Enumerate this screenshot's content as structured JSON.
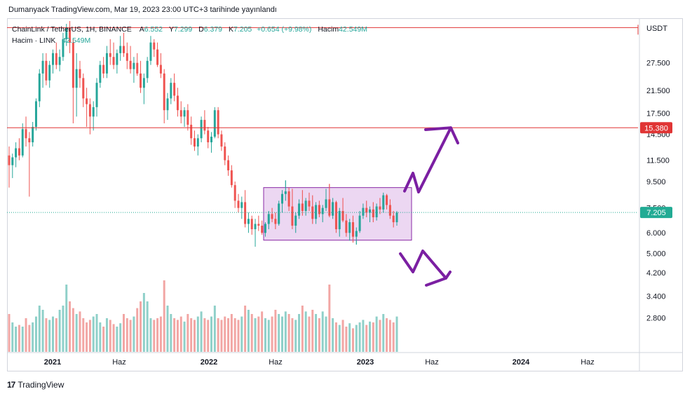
{
  "header": {
    "published": "Dumanyack TradingView.com, Mar 19, 2023 23:00 UTC+3 tarihinde yayınlandı"
  },
  "legend": {
    "symbol": "ChainLink / TetherUS, 1H, BINANCE",
    "o_label": "A",
    "o_val": "6.552",
    "h_label": "Y",
    "h_val": "7.299",
    "l_label": "D",
    "l_val": "6.379",
    "c_label": "K",
    "c_val": "7.205",
    "change": "+0.654 (+9.98%)",
    "vol_label": "Hacim",
    "vol_val": "42.549M",
    "line2_label": "Hacim · LINK",
    "line2_val": "42.549M"
  },
  "footer": {
    "brand": "TradingView",
    "logo": "17"
  },
  "colors": {
    "up": "#26a69a",
    "down": "#ef5350",
    "upVol": "#8fd0c9",
    "downVol": "#f2a6a4",
    "hline": "#e03535",
    "box_fill": "#e6c9ee",
    "box_stroke": "#8a2aa6",
    "arrow": "#7b1fa2",
    "lastPrice": "#22ab94"
  },
  "chart_data": {
    "type": "candlestick",
    "title": "ChainLink / TetherUS, 1H, BINANCE",
    "currency": "USDT",
    "scale": "log",
    "ylim": [
      2.3,
      40
    ],
    "price_ticks": [
      "27.500",
      "21.500",
      "17.500",
      "14.500",
      "11.500",
      "9.500",
      "7.500",
      "6.000",
      "5.000",
      "4.200",
      "3.400",
      "2.800"
    ],
    "x_ticks": [
      "2021",
      "Haz",
      "2022",
      "Haz",
      "2023",
      "Haz",
      "2024",
      "Haz"
    ],
    "horizontal_lines": [
      {
        "price": 15.38,
        "label": "15.380"
      },
      {
        "price": 37.7,
        "label": ""
      }
    ],
    "last_price": {
      "price": 7.205,
      "label": "7.205"
    },
    "consolidation_box": {
      "price_top": 9.0,
      "price_bottom": 5.62
    },
    "projection_up_target": 15.38,
    "projection_down_target": 4.0,
    "ohlc_weekly": [
      [
        12.0,
        13.0,
        9.0,
        11.0
      ],
      [
        11.0,
        12.2,
        9.8,
        11.8
      ],
      [
        11.8,
        13.5,
        10.8,
        12.8
      ],
      [
        12.8,
        14.0,
        11.5,
        12.0
      ],
      [
        12.0,
        16.0,
        11.8,
        15.2
      ],
      [
        15.2,
        17.0,
        13.0,
        14.0
      ],
      [
        14.0,
        14.8,
        8.3,
        13.5
      ],
      [
        13.5,
        16.2,
        13.0,
        15.5
      ],
      [
        15.5,
        20.0,
        15.0,
        19.5
      ],
      [
        19.5,
        26.0,
        18.5,
        25.0
      ],
      [
        25.0,
        30.0,
        22.0,
        28.0
      ],
      [
        28.0,
        30.0,
        22.5,
        23.5
      ],
      [
        23.5,
        28.0,
        22.0,
        27.0
      ],
      [
        27.0,
        31.0,
        25.0,
        30.0
      ],
      [
        30.0,
        33.0,
        26.0,
        27.0
      ],
      [
        27.0,
        31.0,
        25.5,
        29.0
      ],
      [
        29.0,
        36.0,
        28.0,
        34.0
      ],
      [
        34.0,
        39.0,
        32.0,
        37.5
      ],
      [
        37.5,
        44.0,
        30.0,
        33.0
      ],
      [
        33.0,
        34.0,
        16.0,
        22.0
      ],
      [
        22.0,
        30.0,
        17.0,
        26.0
      ],
      [
        26.0,
        28.0,
        22.0,
        24.0
      ],
      [
        24.0,
        25.0,
        18.5,
        20.0
      ],
      [
        20.0,
        22.0,
        15.5,
        19.0
      ],
      [
        19.0,
        20.0,
        14.5,
        17.0
      ],
      [
        17.0,
        19.5,
        15.0,
        18.5
      ],
      [
        18.5,
        24.0,
        17.0,
        23.0
      ],
      [
        23.0,
        28.0,
        22.0,
        27.0
      ],
      [
        27.0,
        29.0,
        24.0,
        25.0
      ],
      [
        25.0,
        32.0,
        24.0,
        30.0
      ],
      [
        30.0,
        34.0,
        27.0,
        29.0
      ],
      [
        29.0,
        33.0,
        26.0,
        27.0
      ],
      [
        27.0,
        31.0,
        25.0,
        30.0
      ],
      [
        30.0,
        35.0,
        28.0,
        32.0
      ],
      [
        32.0,
        36.0,
        29.0,
        30.0
      ],
      [
        30.0,
        33.0,
        26.0,
        28.0
      ],
      [
        28.0,
        32.0,
        25.0,
        26.0
      ],
      [
        26.0,
        29.0,
        23.0,
        27.5
      ],
      [
        27.5,
        30.0,
        24.5,
        25.0
      ],
      [
        25.0,
        28.0,
        21.0,
        22.0
      ],
      [
        22.0,
        25.0,
        19.0,
        24.0
      ],
      [
        24.0,
        29.0,
        23.0,
        28.0
      ],
      [
        28.0,
        35.0,
        27.0,
        33.0
      ],
      [
        33.0,
        34.0,
        29.0,
        31.0
      ],
      [
        31.0,
        33.0,
        26.5,
        27.0
      ],
      [
        27.0,
        30.0,
        24.0,
        25.0
      ],
      [
        25.0,
        26.0,
        16.0,
        18.0
      ],
      [
        18.0,
        21.0,
        16.5,
        20.0
      ],
      [
        20.0,
        24.0,
        19.0,
        23.0
      ],
      [
        23.0,
        25.0,
        19.5,
        20.5
      ],
      [
        20.5,
        22.0,
        17.0,
        18.0
      ],
      [
        18.0,
        19.5,
        16.0,
        17.0
      ],
      [
        17.0,
        18.5,
        15.5,
        18.0
      ],
      [
        18.0,
        19.0,
        15.0,
        15.8
      ],
      [
        15.8,
        17.0,
        13.2,
        14.0
      ],
      [
        14.0,
        15.0,
        12.5,
        13.0
      ],
      [
        13.0,
        14.5,
        12.0,
        14.0
      ],
      [
        14.0,
        17.0,
        13.5,
        16.5
      ],
      [
        16.5,
        18.0,
        14.5,
        15.0
      ],
      [
        15.0,
        15.5,
        12.8,
        13.5
      ],
      [
        13.5,
        14.8,
        12.3,
        14.2
      ],
      [
        14.2,
        18.5,
        14.0,
        18.0
      ],
      [
        18.0,
        18.5,
        14.0,
        14.5
      ],
      [
        14.5,
        15.0,
        12.5,
        13.0
      ],
      [
        13.0,
        13.5,
        11.0,
        11.5
      ],
      [
        11.5,
        12.0,
        10.0,
        10.5
      ],
      [
        10.5,
        11.0,
        9.0,
        9.2
      ],
      [
        9.2,
        9.5,
        7.5,
        8.0
      ],
      [
        8.0,
        8.5,
        7.2,
        7.5
      ],
      [
        7.5,
        8.3,
        6.8,
        7.9
      ],
      [
        7.9,
        8.8,
        6.3,
        6.5
      ],
      [
        6.5,
        7.2,
        6.0,
        6.8
      ],
      [
        6.8,
        7.0,
        5.9,
        6.2
      ],
      [
        6.2,
        6.8,
        5.3,
        6.5
      ],
      [
        6.5,
        7.0,
        6.1,
        6.4
      ],
      [
        6.4,
        6.7,
        5.9,
        6.0
      ],
      [
        6.0,
        6.6,
        5.8,
        6.5
      ],
      [
        6.5,
        7.3,
        6.2,
        7.1
      ],
      [
        7.1,
        7.5,
        6.6,
        6.8
      ],
      [
        6.8,
        7.2,
        6.2,
        6.5
      ],
      [
        6.5,
        8.0,
        6.4,
        7.8
      ],
      [
        7.8,
        8.8,
        7.2,
        8.5
      ],
      [
        8.5,
        9.6,
        8.0,
        8.7
      ],
      [
        8.7,
        9.0,
        7.3,
        7.6
      ],
      [
        7.6,
        8.9,
        6.2,
        6.4
      ],
      [
        6.4,
        7.2,
        6.0,
        7.0
      ],
      [
        7.0,
        8.1,
        6.8,
        7.8
      ],
      [
        7.8,
        8.8,
        7.0,
        7.3
      ],
      [
        7.3,
        8.2,
        7.0,
        8.0
      ],
      [
        8.0,
        8.6,
        7.3,
        7.6
      ],
      [
        7.6,
        8.4,
        6.5,
        6.8
      ],
      [
        6.8,
        7.9,
        6.5,
        7.7
      ],
      [
        7.7,
        8.0,
        6.9,
        7.1
      ],
      [
        7.1,
        7.7,
        6.6,
        7.5
      ],
      [
        7.5,
        8.9,
        7.3,
        8.1
      ],
      [
        8.1,
        9.3,
        6.9,
        7.0
      ],
      [
        7.0,
        8.2,
        6.8,
        7.9
      ],
      [
        7.9,
        8.0,
        6.0,
        6.2
      ],
      [
        6.2,
        7.5,
        5.8,
        7.3
      ],
      [
        7.3,
        8.2,
        6.6,
        6.7
      ],
      [
        6.7,
        7.1,
        5.8,
        6.0
      ],
      [
        6.0,
        6.8,
        5.6,
        6.6
      ],
      [
        6.6,
        7.0,
        5.5,
        5.8
      ],
      [
        5.8,
        6.3,
        5.4,
        6.1
      ],
      [
        6.1,
        7.3,
        6.0,
        7.0
      ],
      [
        7.0,
        7.8,
        6.8,
        7.5
      ],
      [
        7.5,
        8.0,
        6.9,
        7.2
      ],
      [
        7.2,
        7.6,
        6.6,
        7.4
      ],
      [
        7.4,
        7.9,
        6.6,
        6.9
      ],
      [
        6.9,
        7.8,
        6.7,
        7.6
      ],
      [
        7.6,
        8.2,
        7.1,
        7.4
      ],
      [
        7.4,
        8.6,
        7.2,
        8.4
      ],
      [
        8.4,
        8.5,
        7.4,
        7.7
      ],
      [
        7.7,
        8.1,
        6.8,
        7.0
      ],
      [
        7.0,
        7.3,
        6.3,
        6.6
      ],
      [
        6.6,
        7.3,
        6.4,
        7.2
      ]
    ],
    "volume_relative": [
      0.45,
      0.35,
      0.3,
      0.32,
      0.3,
      0.4,
      0.32,
      0.35,
      0.42,
      0.55,
      0.5,
      0.4,
      0.38,
      0.42,
      0.4,
      0.5,
      0.55,
      0.8,
      0.6,
      0.52,
      0.45,
      0.48,
      0.4,
      0.35,
      0.38,
      0.42,
      0.45,
      0.35,
      0.3,
      0.4,
      0.38,
      0.33,
      0.3,
      0.34,
      0.45,
      0.4,
      0.38,
      0.42,
      0.52,
      0.6,
      0.7,
      0.6,
      0.4,
      0.38,
      0.4,
      0.42,
      0.85,
      0.55,
      0.45,
      0.4,
      0.38,
      0.42,
      0.36,
      0.45,
      0.4,
      0.38,
      0.42,
      0.48,
      0.4,
      0.38,
      0.42,
      0.55,
      0.4,
      0.38,
      0.42,
      0.4,
      0.45,
      0.4,
      0.38,
      0.42,
      0.55,
      0.5,
      0.45,
      0.4,
      0.42,
      0.48,
      0.4,
      0.38,
      0.42,
      0.5,
      0.45,
      0.42,
      0.48,
      0.45,
      0.4,
      0.38,
      0.45,
      0.55,
      0.48,
      0.42,
      0.5,
      0.45,
      0.4,
      0.48,
      0.42,
      0.8,
      0.4,
      0.35,
      0.32,
      0.38,
      0.3,
      0.34,
      0.28,
      0.32,
      0.35,
      0.38,
      0.32,
      0.36,
      0.35,
      0.42,
      0.38,
      0.45,
      0.4,
      0.38,
      0.35,
      0.42
    ]
  }
}
